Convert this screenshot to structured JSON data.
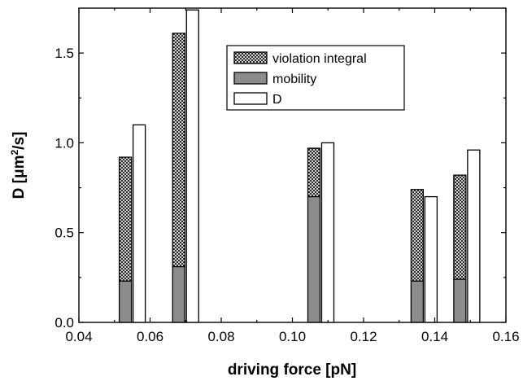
{
  "chart_data": {
    "type": "bar",
    "xlabel": "driving force [pN]",
    "ylabel_parts": {
      "base": "D [μm",
      "sup": "2",
      "tail": "/s]"
    },
    "xlim": [
      0.04,
      0.16
    ],
    "ylim": [
      0.0,
      1.75
    ],
    "xticks": [
      0.04,
      0.06,
      0.08,
      0.1,
      0.12,
      0.14,
      0.16
    ],
    "xtick_labels": [
      "0.04",
      "0.06",
      "0.08",
      "0.10",
      "0.12",
      "0.14",
      "0.16"
    ],
    "yticks": [
      0.0,
      0.5,
      1.0,
      1.5
    ],
    "ytick_labels": [
      "0.0",
      "0.5",
      "1.0",
      "1.5"
    ],
    "legend_position": "top-right",
    "series": [
      {
        "name": "violation integral",
        "pattern": "crosshatch",
        "role": "stacked-top"
      },
      {
        "name": "mobility",
        "color": "#8c8c8c",
        "role": "stacked-bottom"
      },
      {
        "name": "D",
        "color": "#ffffff",
        "role": "side"
      }
    ],
    "groups": [
      {
        "x": 0.055,
        "mobility": 0.23,
        "violation_total": 0.92,
        "D": 1.1
      },
      {
        "x": 0.07,
        "mobility": 0.31,
        "violation_total": 1.61,
        "D": 1.74
      },
      {
        "x": 0.108,
        "mobility": 0.7,
        "violation_total": 0.97,
        "D": 1.0
      },
      {
        "x": 0.137,
        "mobility": 0.23,
        "violation_total": 0.74,
        "D": 0.7
      },
      {
        "x": 0.149,
        "mobility": 0.24,
        "violation_total": 0.82,
        "D": 0.96
      }
    ]
  }
}
